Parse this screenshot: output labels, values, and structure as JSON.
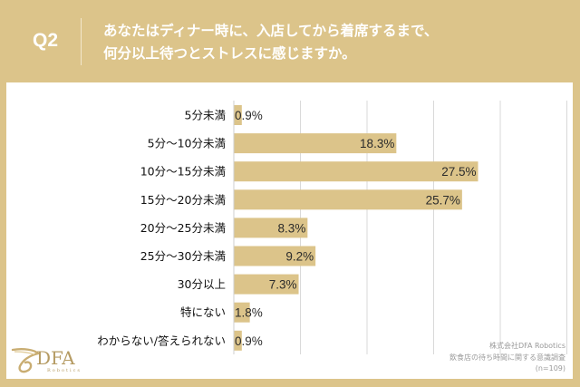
{
  "header": {
    "question_number": "Q2",
    "question_lines": [
      "あなたはディナー時に、入店してから着席するまで、",
      "何分以上待つとストレスに感じますか。"
    ]
  },
  "colors": {
    "background": "#dcc48a",
    "bar": "#dcc48a",
    "gridline": "#d9d9d9",
    "panel": "#ffffff"
  },
  "chart_data": {
    "type": "bar",
    "orientation": "horizontal",
    "categories": [
      "5分未満",
      "5分～10分未満",
      "10分～15分未満",
      "15分～20分未満",
      "20分～25分未満",
      "25分～30分未満",
      "30分以上",
      "特にない",
      "わからない/答えられない"
    ],
    "values": [
      0.9,
      18.3,
      27.5,
      25.7,
      8.3,
      9.2,
      7.3,
      1.8,
      0.9
    ],
    "value_labels": [
      "0.9%",
      "18.3%",
      "27.5%",
      "25.7%",
      "8.3%",
      "9.2%",
      "7.3%",
      "1.8%",
      "0.9%"
    ],
    "unit": "%",
    "xlim": [
      0,
      38
    ],
    "grid_step": 7.5,
    "grid": true,
    "title": "",
    "xlabel": "",
    "ylabel": ""
  },
  "footer": {
    "company": "株式会社DFA Robotics",
    "survey": "飲食店の待ち時間に関する意識調査",
    "sample": "(n=109)"
  },
  "logo": {
    "name": "DFA",
    "sub": "Robotics"
  }
}
